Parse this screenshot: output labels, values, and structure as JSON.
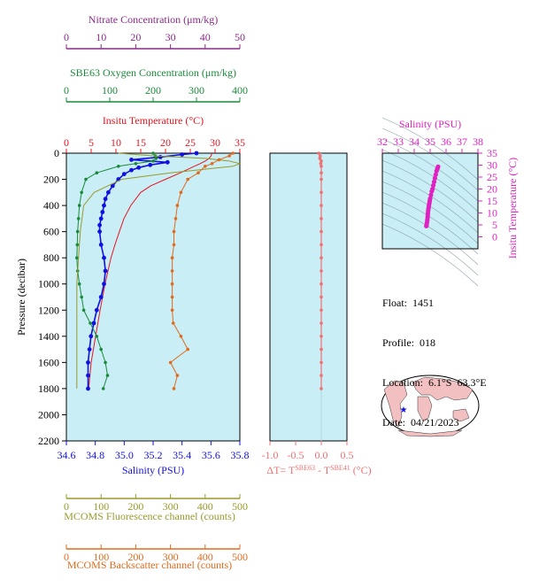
{
  "float_info": {
    "float_label": "Float:",
    "float_value": "1451",
    "profile_label": "Profile:",
    "profile_value": "018",
    "location_label": "Location:",
    "location_value": "6.1°S  63.3°E",
    "date_label": "Date:",
    "date_value": "04/21/2023"
  },
  "colors": {
    "nitrate": "#8b2a8b",
    "oxygen": "#1a8a3a",
    "temperature": "#e8141e",
    "salinity": "#1010e0",
    "delta": "#f07070",
    "salinity_ts": "#e020c0",
    "fluorescence": "#9a9a2a",
    "backscatter": "#e06a1e",
    "plot_bg": "#c9eef6",
    "land": "#f2c0c0",
    "ocean": "#ffffff"
  },
  "chart_data": [
    {
      "id": "main_profile",
      "type": "line",
      "y_axis": {
        "label": "Pressure (decibar)",
        "range": [
          0,
          2200
        ],
        "ticks": [
          "0",
          "200",
          "400",
          "600",
          "800",
          "1000",
          "1200",
          "1400",
          "1600",
          "1800",
          "2000",
          "2200"
        ],
        "tick_values": [
          0,
          200,
          400,
          600,
          800,
          1000,
          1200,
          1400,
          1600,
          1800,
          2000,
          2200
        ],
        "reversed": true
      },
      "x_axes": {
        "temperature": {
          "label": "Insitu Temperature (°C)",
          "range": [
            0,
            35
          ],
          "ticks": [
            "0",
            "5",
            "10",
            "15",
            "20",
            "25",
            "30",
            "35"
          ],
          "tick_values": [
            0,
            5,
            10,
            15,
            20,
            25,
            30,
            35
          ]
        },
        "salinity": {
          "label": "Salinity (PSU)",
          "range": [
            34.6,
            35.8
          ],
          "ticks": [
            "34.6",
            "34.8",
            "35.0",
            "35.2",
            "35.4",
            "35.6",
            "35.8"
          ],
          "tick_values": [
            34.6,
            34.8,
            35.0,
            35.2,
            35.4,
            35.6,
            35.8
          ]
        },
        "oxygen": {
          "label": "SBE63 Oxygen Concentration (μm/kg)",
          "range": [
            0,
            400
          ],
          "ticks": [
            "0",
            "100",
            "200",
            "300",
            "400"
          ],
          "tick_values": [
            0,
            100,
            200,
            300,
            400
          ]
        },
        "nitrate": {
          "label": "Nitrate Concentration (μm/kg)",
          "range": [
            0,
            50
          ],
          "ticks": [
            "0",
            "10",
            "20",
            "30",
            "40",
            "50"
          ],
          "tick_values": [
            0,
            10,
            20,
            30,
            40,
            50
          ]
        },
        "fluorescence": {
          "label": "MCOMS Fluorescence channel (counts)",
          "range": [
            0,
            500
          ],
          "ticks": [
            "0",
            "100",
            "200",
            "300",
            "400",
            "500"
          ],
          "tick_values": [
            0,
            100,
            200,
            300,
            400,
            500
          ]
        },
        "backscatter": {
          "label": "MCOMS Backscatter channel (counts)",
          "range": [
            0,
            500
          ],
          "ticks": [
            "0",
            "100",
            "200",
            "300",
            "400",
            "500"
          ],
          "tick_values": [
            0,
            100,
            200,
            300,
            400,
            500
          ]
        }
      },
      "series": [
        {
          "axis": "temperature",
          "pressure": [
            0,
            10,
            20,
            40,
            60,
            80,
            100,
            150,
            200,
            250,
            300,
            400,
            500,
            600,
            700,
            800,
            900,
            1000,
            1200,
            1400,
            1600,
            1800
          ],
          "values": [
            29.3,
            29.3,
            29.2,
            28.8,
            28.0,
            27.0,
            25.8,
            23.0,
            20.0,
            17.0,
            15.0,
            13.0,
            11.6,
            10.7,
            9.8,
            9.0,
            8.4,
            7.8,
            6.8,
            5.9,
            5.0,
            4.5
          ]
        },
        {
          "axis": "salinity",
          "markers": true,
          "pressure": [
            0,
            10,
            30,
            50,
            70,
            90,
            110,
            130,
            160,
            200,
            250,
            300,
            350,
            400,
            450,
            500,
            550,
            600,
            700,
            800,
            900,
            1000,
            1100,
            1200,
            1300,
            1400,
            1500,
            1600,
            1700,
            1800
          ],
          "values": [
            35.5,
            35.4,
            35.25,
            35.05,
            35.3,
            35.18,
            35.1,
            35.05,
            35.0,
            34.96,
            34.92,
            34.89,
            34.87,
            34.86,
            34.85,
            34.84,
            34.83,
            34.83,
            34.84,
            34.86,
            34.87,
            34.86,
            34.84,
            34.81,
            34.79,
            34.77,
            34.76,
            34.75,
            34.75,
            34.75
          ]
        },
        {
          "axis": "oxygen",
          "markers": true,
          "pressure": [
            0,
            20,
            40,
            60,
            80,
            100,
            150,
            200,
            300,
            400,
            500,
            600,
            700,
            800,
            900,
            1000,
            1100,
            1200,
            1300,
            1400,
            1500,
            1600,
            1700,
            1800
          ],
          "values": [
            200,
            205,
            207,
            200,
            160,
            120,
            70,
            45,
            35,
            30,
            28,
            26,
            25,
            24,
            26,
            30,
            35,
            40,
            55,
            70,
            80,
            90,
            95,
            85
          ]
        },
        {
          "axis": "fluorescence",
          "pressure": [
            0,
            20,
            40,
            60,
            80,
            100,
            150,
            200,
            300,
            400,
            600,
            800,
            1000,
            1200,
            1400,
            1600,
            1800
          ],
          "values": [
            150,
            250,
            400,
            470,
            500,
            480,
            300,
            160,
            80,
            50,
            40,
            35,
            30,
            30,
            30,
            30,
            30
          ]
        },
        {
          "axis": "backscatter",
          "markers": true,
          "pressure": [
            0,
            20,
            50,
            80,
            100,
            150,
            200,
            300,
            400,
            500,
            600,
            700,
            800,
            900,
            1000,
            1100,
            1200,
            1300,
            1400,
            1500,
            1600,
            1700,
            1800
          ],
          "values": [
            480,
            470,
            440,
            420,
            400,
            380,
            350,
            330,
            320,
            315,
            310,
            310,
            305,
            305,
            305,
            305,
            305,
            308,
            330,
            350,
            300,
            320,
            310
          ]
        }
      ]
    },
    {
      "id": "delta_temperature",
      "type": "line",
      "x_axis": {
        "label": "ΔT= TSBE63 - TSBE41 (°C)",
        "label_prefix": "ΔT= T",
        "label_sup1": "SBE63",
        "label_mid": " - T",
        "label_sup2": "SBE41",
        "label_suffix": " (°C)",
        "range": [
          -1.0,
          0.5
        ],
        "ticks": [
          "-1.0",
          "-0.5",
          "0.0",
          "0.5"
        ],
        "tick_values": [
          -1.0,
          -0.5,
          0.0,
          0.5
        ]
      },
      "y_axis": {
        "range": [
          0,
          2200
        ],
        "reversed": true
      },
      "series": [
        {
          "markers": true,
          "pressure": [
            0,
            20,
            40,
            60,
            80,
            100,
            150,
            200,
            300,
            400,
            500,
            600,
            700,
            800,
            900,
            1000,
            1100,
            1200,
            1300,
            1400,
            1500,
            1600,
            1700,
            1800
          ],
          "values": [
            -0.05,
            -0.02,
            -0.03,
            0.0,
            -0.01,
            0.0,
            0.0,
            0.0,
            0.0,
            0.0,
            0.0,
            0.0,
            0.0,
            0.0,
            0.0,
            0.0,
            0.0,
            0.0,
            0.0,
            0.0,
            0.0,
            0.0,
            0.0,
            0.0
          ]
        }
      ]
    },
    {
      "id": "ts_diagram",
      "type": "scatter",
      "x_axis": {
        "label": "Salinity (PSU)",
        "range": [
          32,
          38
        ],
        "ticks": [
          "32",
          "33",
          "34",
          "35",
          "36",
          "37",
          "38"
        ],
        "tick_values": [
          32,
          33,
          34,
          35,
          36,
          37,
          38
        ]
      },
      "y_axis": {
        "label": "Insitu Temperature (°C)",
        "range": [
          -5,
          35
        ],
        "ticks": [
          "0",
          "5",
          "10",
          "15",
          "20",
          "25",
          "30",
          "35"
        ],
        "tick_values": [
          0,
          5,
          10,
          15,
          20,
          25,
          30,
          35
        ]
      },
      "points": [
        [
          35.5,
          29.3
        ],
        [
          35.45,
          28.5
        ],
        [
          35.4,
          27.5
        ],
        [
          35.35,
          26.0
        ],
        [
          35.3,
          24.5
        ],
        [
          35.25,
          23.0
        ],
        [
          35.2,
          21.5
        ],
        [
          35.15,
          20.0
        ],
        [
          35.1,
          19.0
        ],
        [
          35.05,
          17.5
        ],
        [
          35.0,
          16.0
        ],
        [
          34.97,
          15.0
        ],
        [
          34.95,
          14.0
        ],
        [
          34.92,
          13.0
        ],
        [
          34.9,
          12.0
        ],
        [
          34.88,
          11.0
        ],
        [
          34.86,
          10.0
        ],
        [
          34.85,
          9.0
        ],
        [
          34.84,
          8.0
        ],
        [
          34.82,
          7.0
        ],
        [
          34.8,
          6.0
        ],
        [
          34.78,
          5.0
        ],
        [
          34.76,
          4.5
        ]
      ]
    },
    {
      "id": "location_map",
      "type": "map",
      "marker": {
        "lat": -6.1,
        "lon": 63.3
      }
    }
  ]
}
